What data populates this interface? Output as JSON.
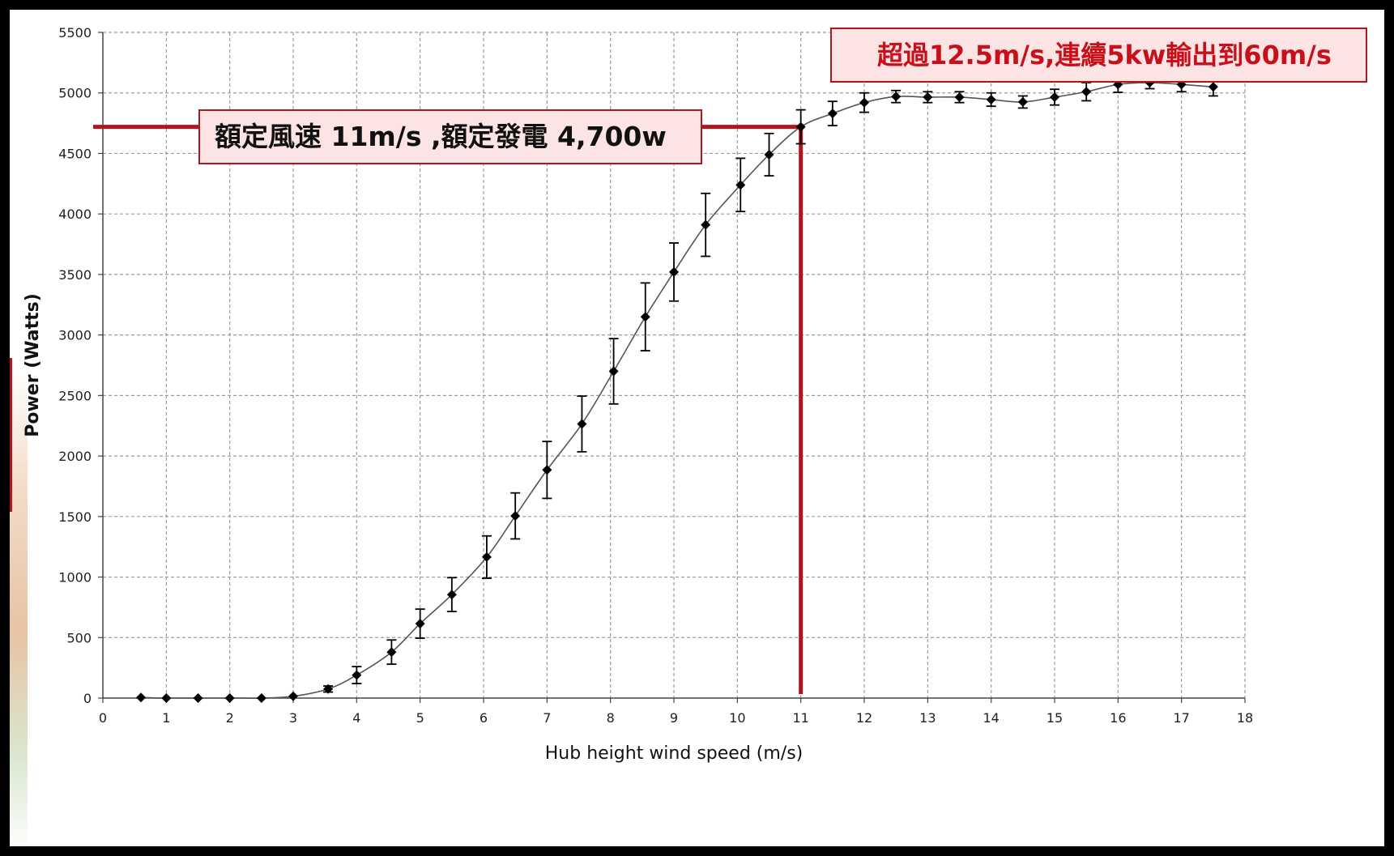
{
  "chart_data": {
    "type": "scatter",
    "xlabel": "Hub height wind speed  (m/s)",
    "ylabel": "Power  (Watts)",
    "xlim": [
      0,
      18
    ],
    "ylim": [
      0,
      5500
    ],
    "x_ticks": [
      0,
      1,
      2,
      3,
      4,
      5,
      6,
      7,
      8,
      9,
      10,
      11,
      12,
      13,
      14,
      15,
      16,
      17,
      18
    ],
    "y_ticks": [
      0,
      500,
      1000,
      1500,
      2000,
      2500,
      3000,
      3500,
      4000,
      4500,
      5000,
      5500
    ],
    "grid": true,
    "series": [
      {
        "points": [
          {
            "x": 0.6,
            "y": 5
          },
          {
            "x": 1.0,
            "y": 0
          },
          {
            "x": 1.5,
            "y": 0
          },
          {
            "x": 2.0,
            "y": 0
          },
          {
            "x": 2.5,
            "y": 0
          },
          {
            "x": 3.0,
            "y": 15
          },
          {
            "x": 3.55,
            "y": 75,
            "err": 25
          },
          {
            "x": 4.0,
            "y": 190,
            "err": 70
          },
          {
            "x": 4.55,
            "y": 380,
            "err": 100
          },
          {
            "x": 5.0,
            "y": 615,
            "err": 120
          },
          {
            "x": 5.5,
            "y": 855,
            "err": 140
          },
          {
            "x": 6.05,
            "y": 1165,
            "err": 175
          },
          {
            "x": 6.5,
            "y": 1505,
            "err": 190
          },
          {
            "x": 7.0,
            "y": 1885,
            "err": 235
          },
          {
            "x": 7.55,
            "y": 2265,
            "err": 230
          },
          {
            "x": 8.05,
            "y": 2700,
            "err": 270
          },
          {
            "x": 8.55,
            "y": 3150,
            "err": 280
          },
          {
            "x": 9.0,
            "y": 3520,
            "err": 240
          },
          {
            "x": 9.5,
            "y": 3910,
            "err": 260
          },
          {
            "x": 10.05,
            "y": 4240,
            "err": 220
          },
          {
            "x": 10.5,
            "y": 4490,
            "err": 175
          },
          {
            "x": 11.0,
            "y": 4720,
            "err": 140
          },
          {
            "x": 11.5,
            "y": 4830,
            "err": 100
          },
          {
            "x": 12.0,
            "y": 4920,
            "err": 80
          },
          {
            "x": 12.5,
            "y": 4970,
            "err": 50
          },
          {
            "x": 13.0,
            "y": 4965,
            "err": 45
          },
          {
            "x": 13.5,
            "y": 4965,
            "err": 45
          },
          {
            "x": 14.0,
            "y": 4945,
            "err": 55
          },
          {
            "x": 14.5,
            "y": 4925,
            "err": 50
          },
          {
            "x": 15.0,
            "y": 4965,
            "err": 65
          },
          {
            "x": 15.5,
            "y": 5010,
            "err": 75
          },
          {
            "x": 16.0,
            "y": 5070,
            "err": 65
          },
          {
            "x": 16.5,
            "y": 5085,
            "err": 50
          },
          {
            "x": 17.0,
            "y": 5070,
            "err": 60
          },
          {
            "x": 17.5,
            "y": 5050,
            "err": 75
          }
        ]
      }
    ],
    "annotations": {
      "rated_label": "額定風速 11m/s ,額定發電 4,700w",
      "rated_x": 11,
      "rated_y": 4720,
      "over_label": "超過12.5m/s,連續5kw輸出到60m/s"
    },
    "colors": {
      "marker": "#000000",
      "curve": "#555555",
      "grid": "#9a9a9a",
      "reference_lines": "#b0161c",
      "annotation_fill": "#fde4e4",
      "over_text": "#c8101a"
    }
  }
}
